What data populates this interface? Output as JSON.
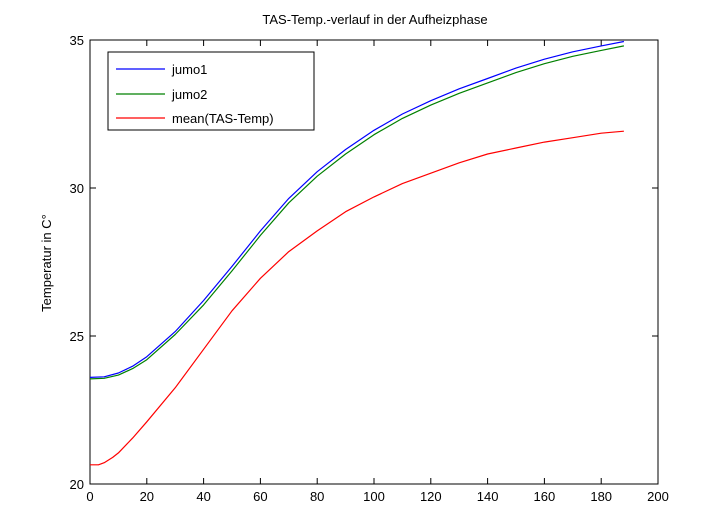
{
  "chart_data": {
    "type": "line",
    "title": "TAS-Temp.-verlauf in der Aufheizphase",
    "xlabel": "",
    "ylabel": "Temperatur in C°",
    "xlim": [
      0,
      200
    ],
    "ylim": [
      20,
      35
    ],
    "xticks": [
      0,
      20,
      40,
      60,
      80,
      100,
      120,
      140,
      160,
      180,
      200
    ],
    "yticks": [
      20,
      25,
      30,
      35
    ],
    "grid": false,
    "legend_position": "top-left",
    "series": [
      {
        "name": "jumo1",
        "color": "#0000ff",
        "x": [
          0,
          5,
          10,
          15,
          20,
          30,
          40,
          50,
          60,
          70,
          80,
          90,
          100,
          110,
          120,
          130,
          140,
          150,
          160,
          170,
          180,
          188
        ],
        "y": [
          23.6,
          23.62,
          23.75,
          23.98,
          24.3,
          25.15,
          26.2,
          27.35,
          28.55,
          29.65,
          30.55,
          31.3,
          31.95,
          32.5,
          32.95,
          33.35,
          33.7,
          34.05,
          34.35,
          34.6,
          34.8,
          34.95
        ]
      },
      {
        "name": "jumo2",
        "color": "#008000",
        "x": [
          0,
          5,
          10,
          15,
          20,
          30,
          40,
          50,
          60,
          70,
          80,
          90,
          100,
          110,
          120,
          130,
          140,
          150,
          160,
          170,
          180,
          188
        ],
        "y": [
          23.55,
          23.57,
          23.68,
          23.9,
          24.2,
          25.05,
          26.05,
          27.2,
          28.4,
          29.5,
          30.4,
          31.15,
          31.8,
          32.35,
          32.8,
          33.2,
          33.55,
          33.9,
          34.2,
          34.45,
          34.65,
          34.8
        ]
      },
      {
        "name": "mean(TAS-Temp)",
        "color": "#ff0000",
        "x": [
          0,
          3,
          5,
          8,
          10,
          15,
          20,
          30,
          40,
          50,
          60,
          70,
          80,
          90,
          100,
          110,
          120,
          130,
          140,
          150,
          160,
          170,
          180,
          188
        ],
        "y": [
          20.65,
          20.65,
          20.72,
          20.9,
          21.05,
          21.55,
          22.1,
          23.25,
          24.55,
          25.85,
          26.95,
          27.85,
          28.55,
          29.2,
          29.7,
          30.15,
          30.5,
          30.85,
          31.15,
          31.35,
          31.55,
          31.7,
          31.85,
          31.92
        ]
      }
    ]
  }
}
